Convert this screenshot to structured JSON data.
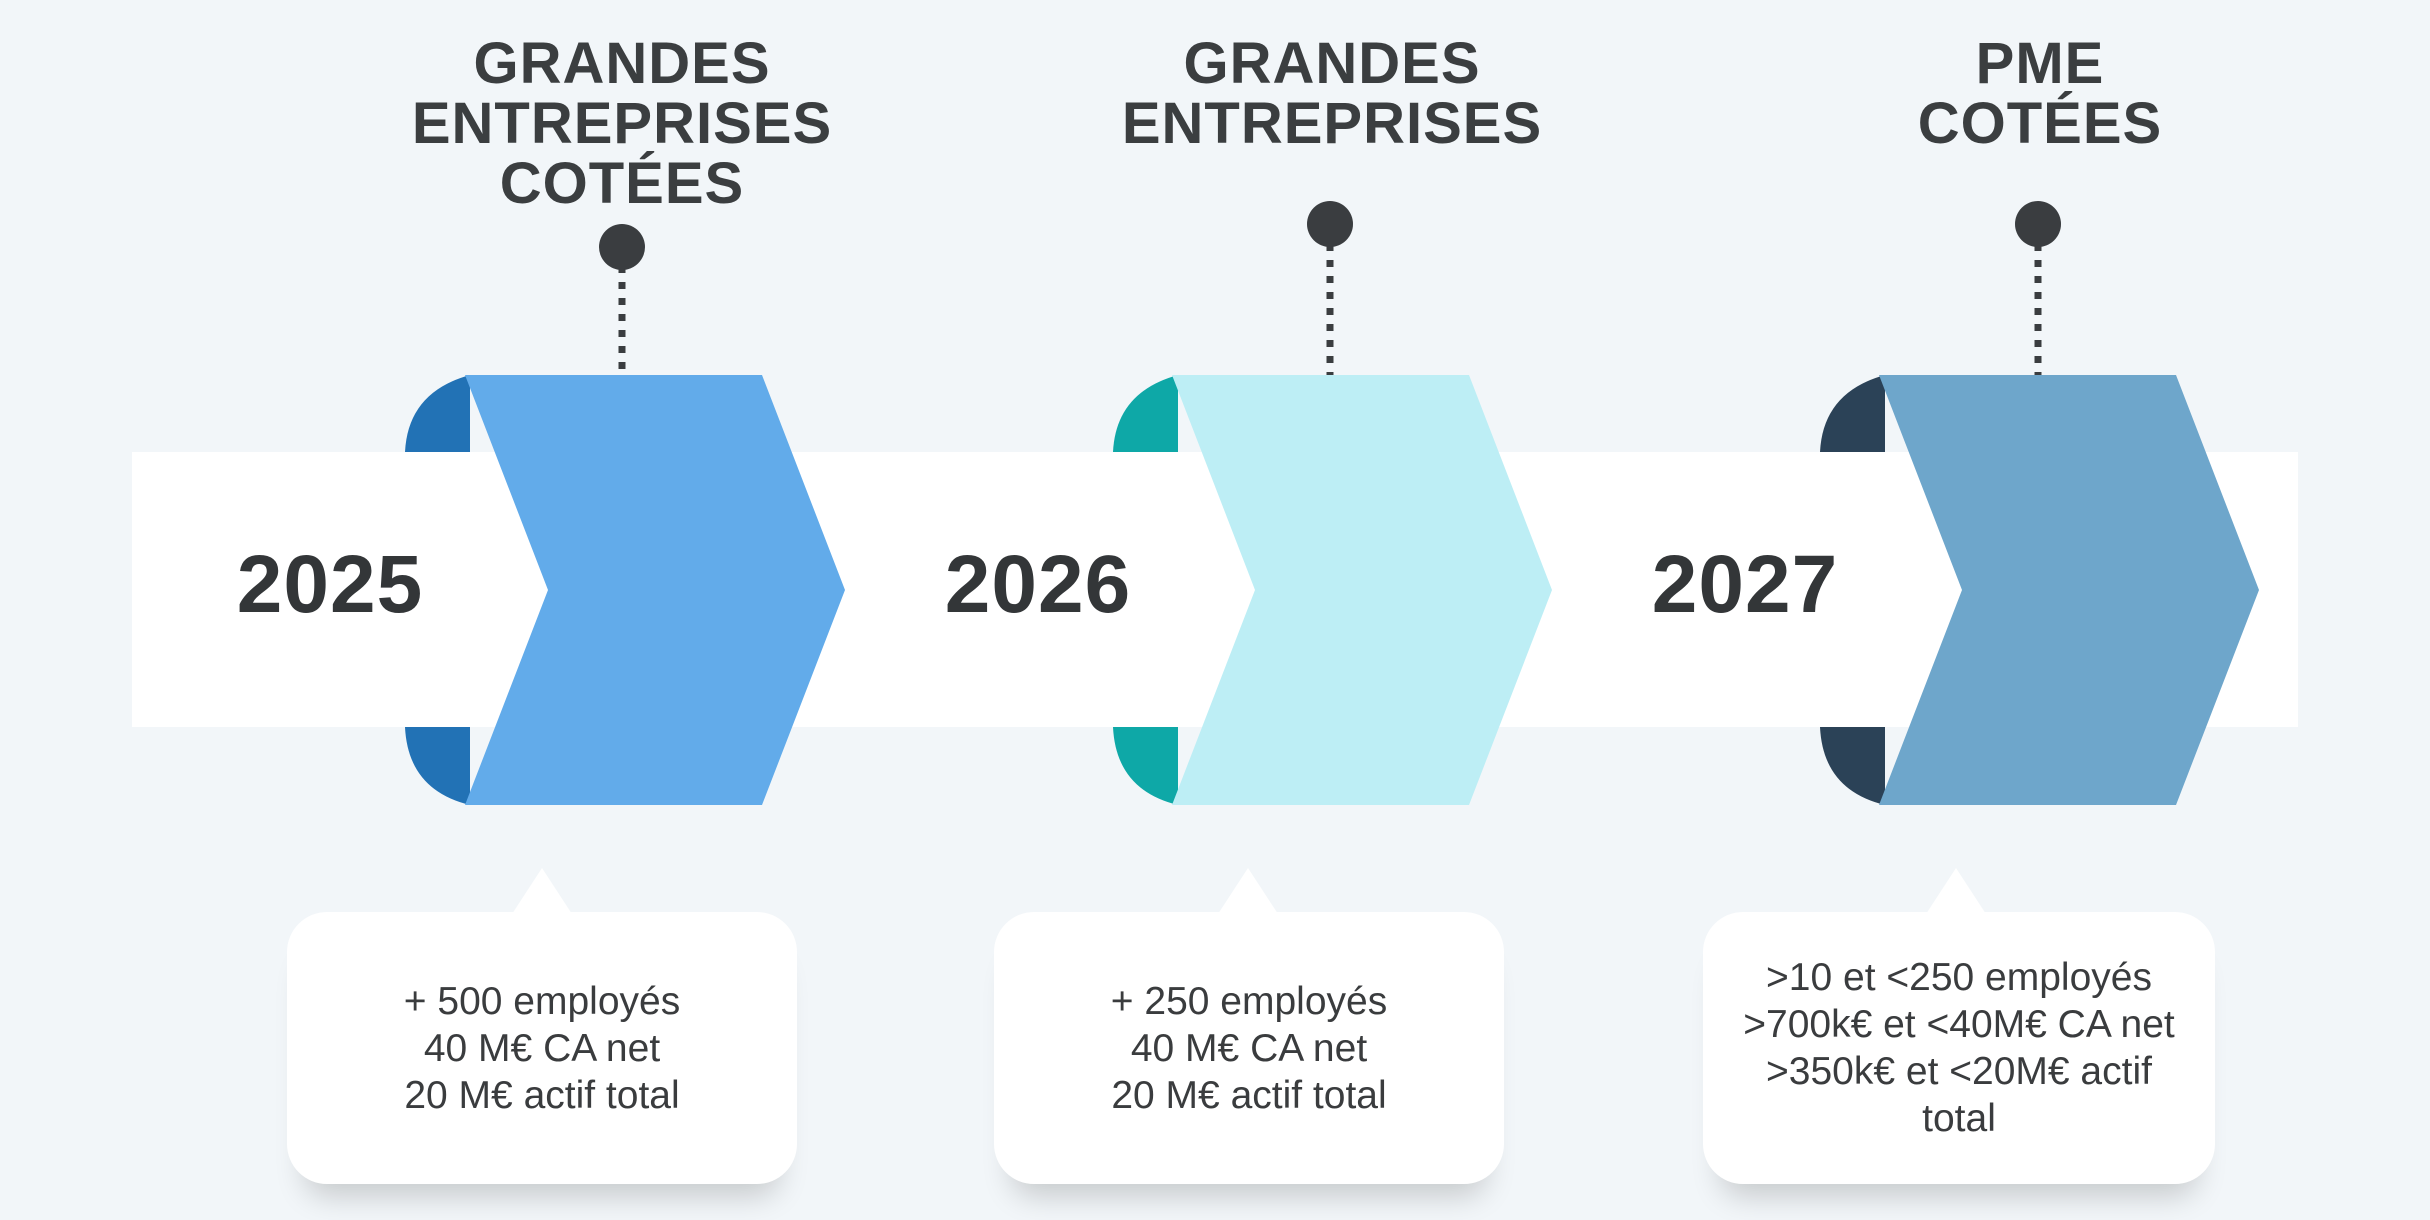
{
  "timeline": {
    "stages": [
      {
        "year": "2025",
        "title_lines": [
          "GRANDES",
          "ENTREPRISES",
          "COTÉES"
        ],
        "criteria": [
          "+ 500 employés",
          "40 M€ CA net",
          "20 M€ actif total"
        ],
        "colors": {
          "chevron": "#62abea",
          "cap": "#2272b5"
        }
      },
      {
        "year": "2026",
        "title_lines": [
          "GRANDES",
          "ENTREPRISES"
        ],
        "criteria": [
          "+ 250 employés",
          "40 M€ CA net",
          "20 M€ actif total"
        ],
        "colors": {
          "chevron": "#bdeef5",
          "cap": "#0ea8a7"
        }
      },
      {
        "year": "2027",
        "title_lines": [
          "PME",
          "COTÉES"
        ],
        "criteria": [
          ">10 et <250 employés",
          ">700k€ et <40M€ CA net",
          ">350k€ et <20M€ actif total"
        ],
        "colors": {
          "chevron": "#6ea6cb",
          "cap": "#2b4257"
        }
      }
    ]
  },
  "icons": {
    "connector": "dotted-line-pin-icon",
    "stage": "chevron-arrow-icon"
  }
}
